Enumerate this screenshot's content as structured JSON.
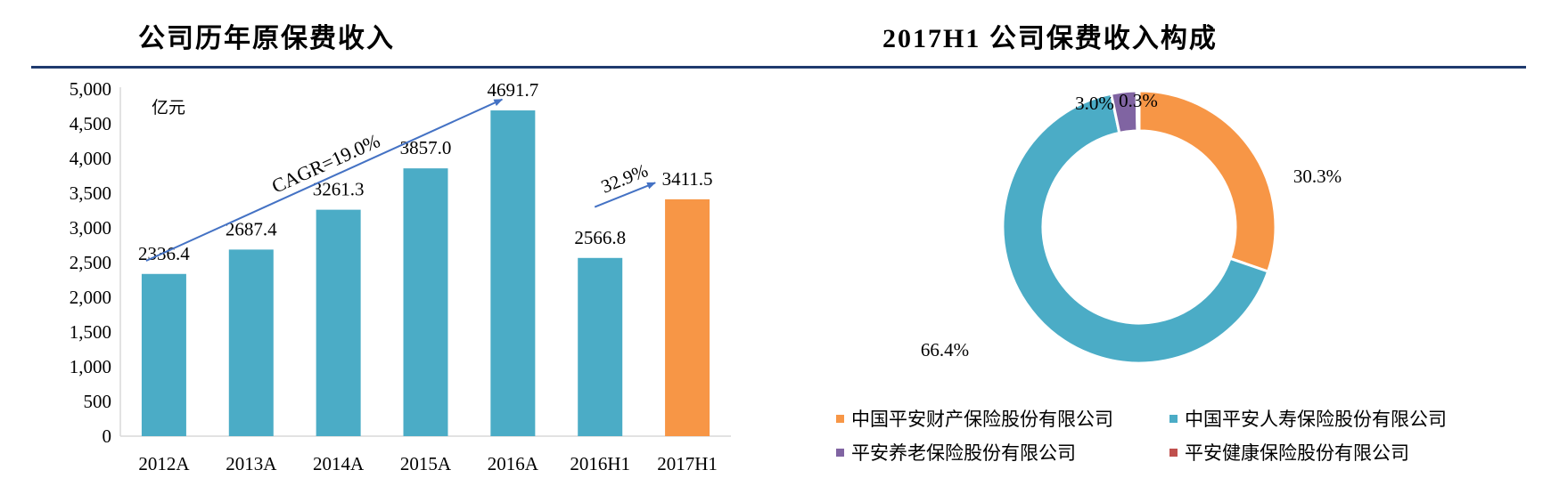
{
  "left_title": "公司历年原保费收入",
  "right_title": "2017H1 公司保费收入构成",
  "chart_data": [
    {
      "type": "bar",
      "title": "公司历年原保费收入",
      "unit_label": "亿元",
      "categories": [
        "2012A",
        "2013A",
        "2014A",
        "2015A",
        "2016A",
        "2016H1",
        "2017H1"
      ],
      "values": [
        2336.4,
        2687.4,
        3261.3,
        3857.0,
        4691.7,
        2566.8,
        3411.5
      ],
      "value_labels": [
        "2336.4",
        "2687.4",
        "3261.3",
        "3857.0",
        "4691.7",
        "2566.8",
        "3411.5"
      ],
      "bar_colors": [
        "#4bacc6",
        "#4bacc6",
        "#4bacc6",
        "#4bacc6",
        "#4bacc6",
        "#4bacc6",
        "#f79646"
      ],
      "ylim": [
        0,
        5000
      ],
      "yticks": [
        0,
        500,
        1000,
        1500,
        2000,
        2500,
        3000,
        3500,
        4000,
        4500,
        5000
      ],
      "ytick_labels": [
        "0",
        "500",
        "1,000",
        "1,500",
        "2,000",
        "2,500",
        "3,000",
        "3,500",
        "4,000",
        "4,500",
        "5,000"
      ],
      "annotations": [
        {
          "text": "CAGR=19.0%",
          "from_category": "2012A",
          "to_category": "2016A"
        },
        {
          "text": "32.9%",
          "from_category": "2016H1",
          "to_category": "2017H1"
        }
      ],
      "arrow_color": "#4472c4"
    },
    {
      "type": "pie",
      "subtype": "donut",
      "title": "2017H1 公司保费收入构成",
      "slices": [
        {
          "name": "中国平安财产保险股份有限公司",
          "value": 30.3,
          "label": "30.3%",
          "color": "#f79646"
        },
        {
          "name": "中国平安人寿保险股份有限公司",
          "value": 66.4,
          "label": "66.4%",
          "color": "#4bacc6"
        },
        {
          "name": "平安养老保险股份有限公司",
          "value": 3.0,
          "label": "3.0%",
          "color": "#8064a2"
        },
        {
          "name": "平安健康保险股份有限公司",
          "value": 0.3,
          "label": "0.3%",
          "color": "#c0504d"
        }
      ],
      "legend_position": "bottom"
    }
  ]
}
